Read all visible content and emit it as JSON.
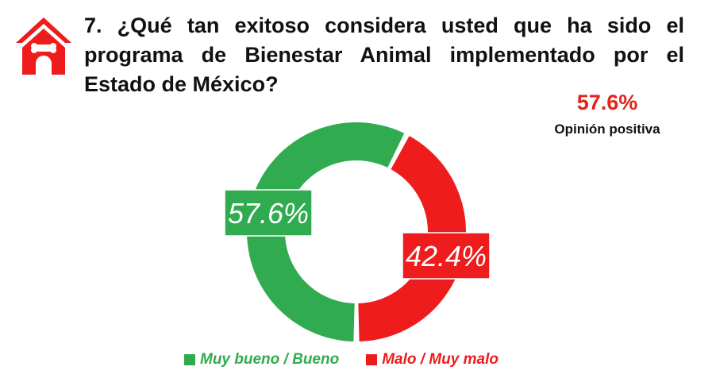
{
  "header": {
    "question": "7. ¿Qué tan exitoso considera usted que ha sido el programa de Bienestar Animal implementado por el Estado de México?",
    "logo_icon": "dog-house-icon"
  },
  "summary": {
    "value": "57.6%",
    "label": "Opinión positiva"
  },
  "colors": {
    "positive": "#31ab4f",
    "negative": "#ee1c1c",
    "accent": "#e3241b"
  },
  "chart_data": {
    "type": "pie",
    "variant": "donut",
    "categories": [
      "Muy bueno / Bueno",
      "Malo / Muy malo"
    ],
    "values": [
      57.6,
      42.4
    ],
    "data_labels": [
      "57.6%",
      "42.4%"
    ],
    "legend": "bottom"
  }
}
